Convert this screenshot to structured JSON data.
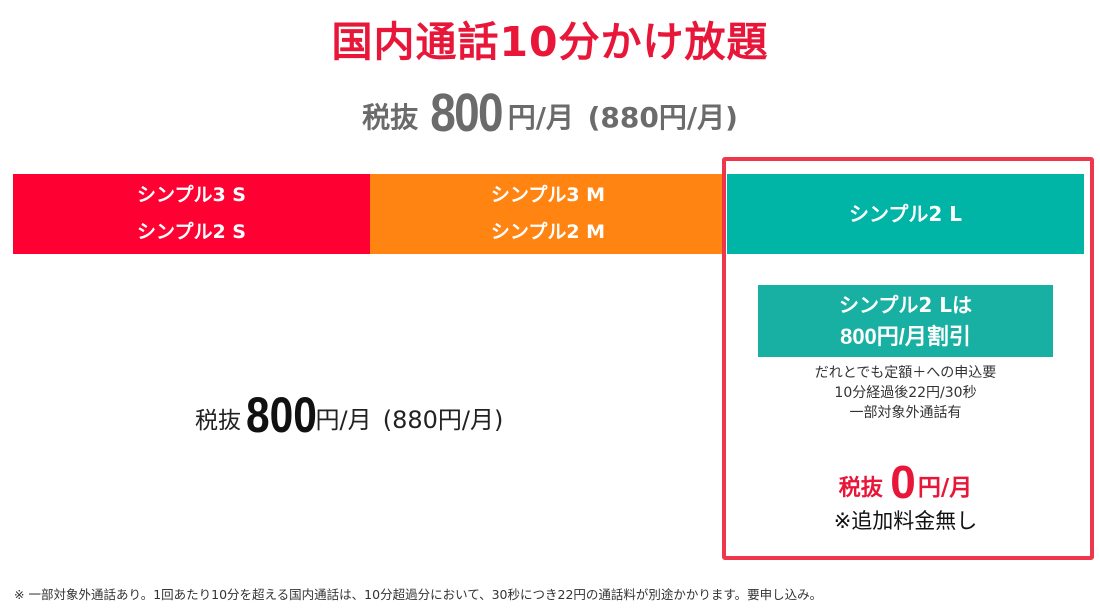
{
  "title": "国内通話10分かけ放題",
  "top_price": {
    "label": "税抜",
    "amount": "800",
    "unit": "円/月",
    "tax_included": "(880円/月)"
  },
  "colors": {
    "title": "#e8173a",
    "plan_s": "#ff0033",
    "plan_m": "#ff8412",
    "plan_l": "#00b4a6",
    "highlight_border": "#f0364a"
  },
  "plans": [
    {
      "id": "s",
      "lines": [
        "シンプル3 S",
        "シンプル2 S"
      ]
    },
    {
      "id": "m",
      "lines": [
        "シンプル3 M",
        "シンプル2 M"
      ]
    },
    {
      "id": "l",
      "lines": [
        "シンプル2 L"
      ]
    }
  ],
  "sm_price": {
    "label": "税抜",
    "amount": "800",
    "unit": "円/月",
    "tax_included": "(880円/月)"
  },
  "l_plan": {
    "discount": {
      "line1": "シンプル2 Lは",
      "line2": "800円/月割引"
    },
    "conditions": [
      "だれとでも定額＋への申込要",
      "10分経過後22円/30秒",
      "一部対象外通話有"
    ],
    "price": {
      "label": "税抜",
      "amount": "0",
      "unit": "円/月"
    },
    "note": "※追加料金無し"
  },
  "footnote": "※ 一部対象外通話あり。1回あたり10分を超える国内通話は、10分超過分において、30秒につき22円の通話料が別途かかります。要申し込み。"
}
